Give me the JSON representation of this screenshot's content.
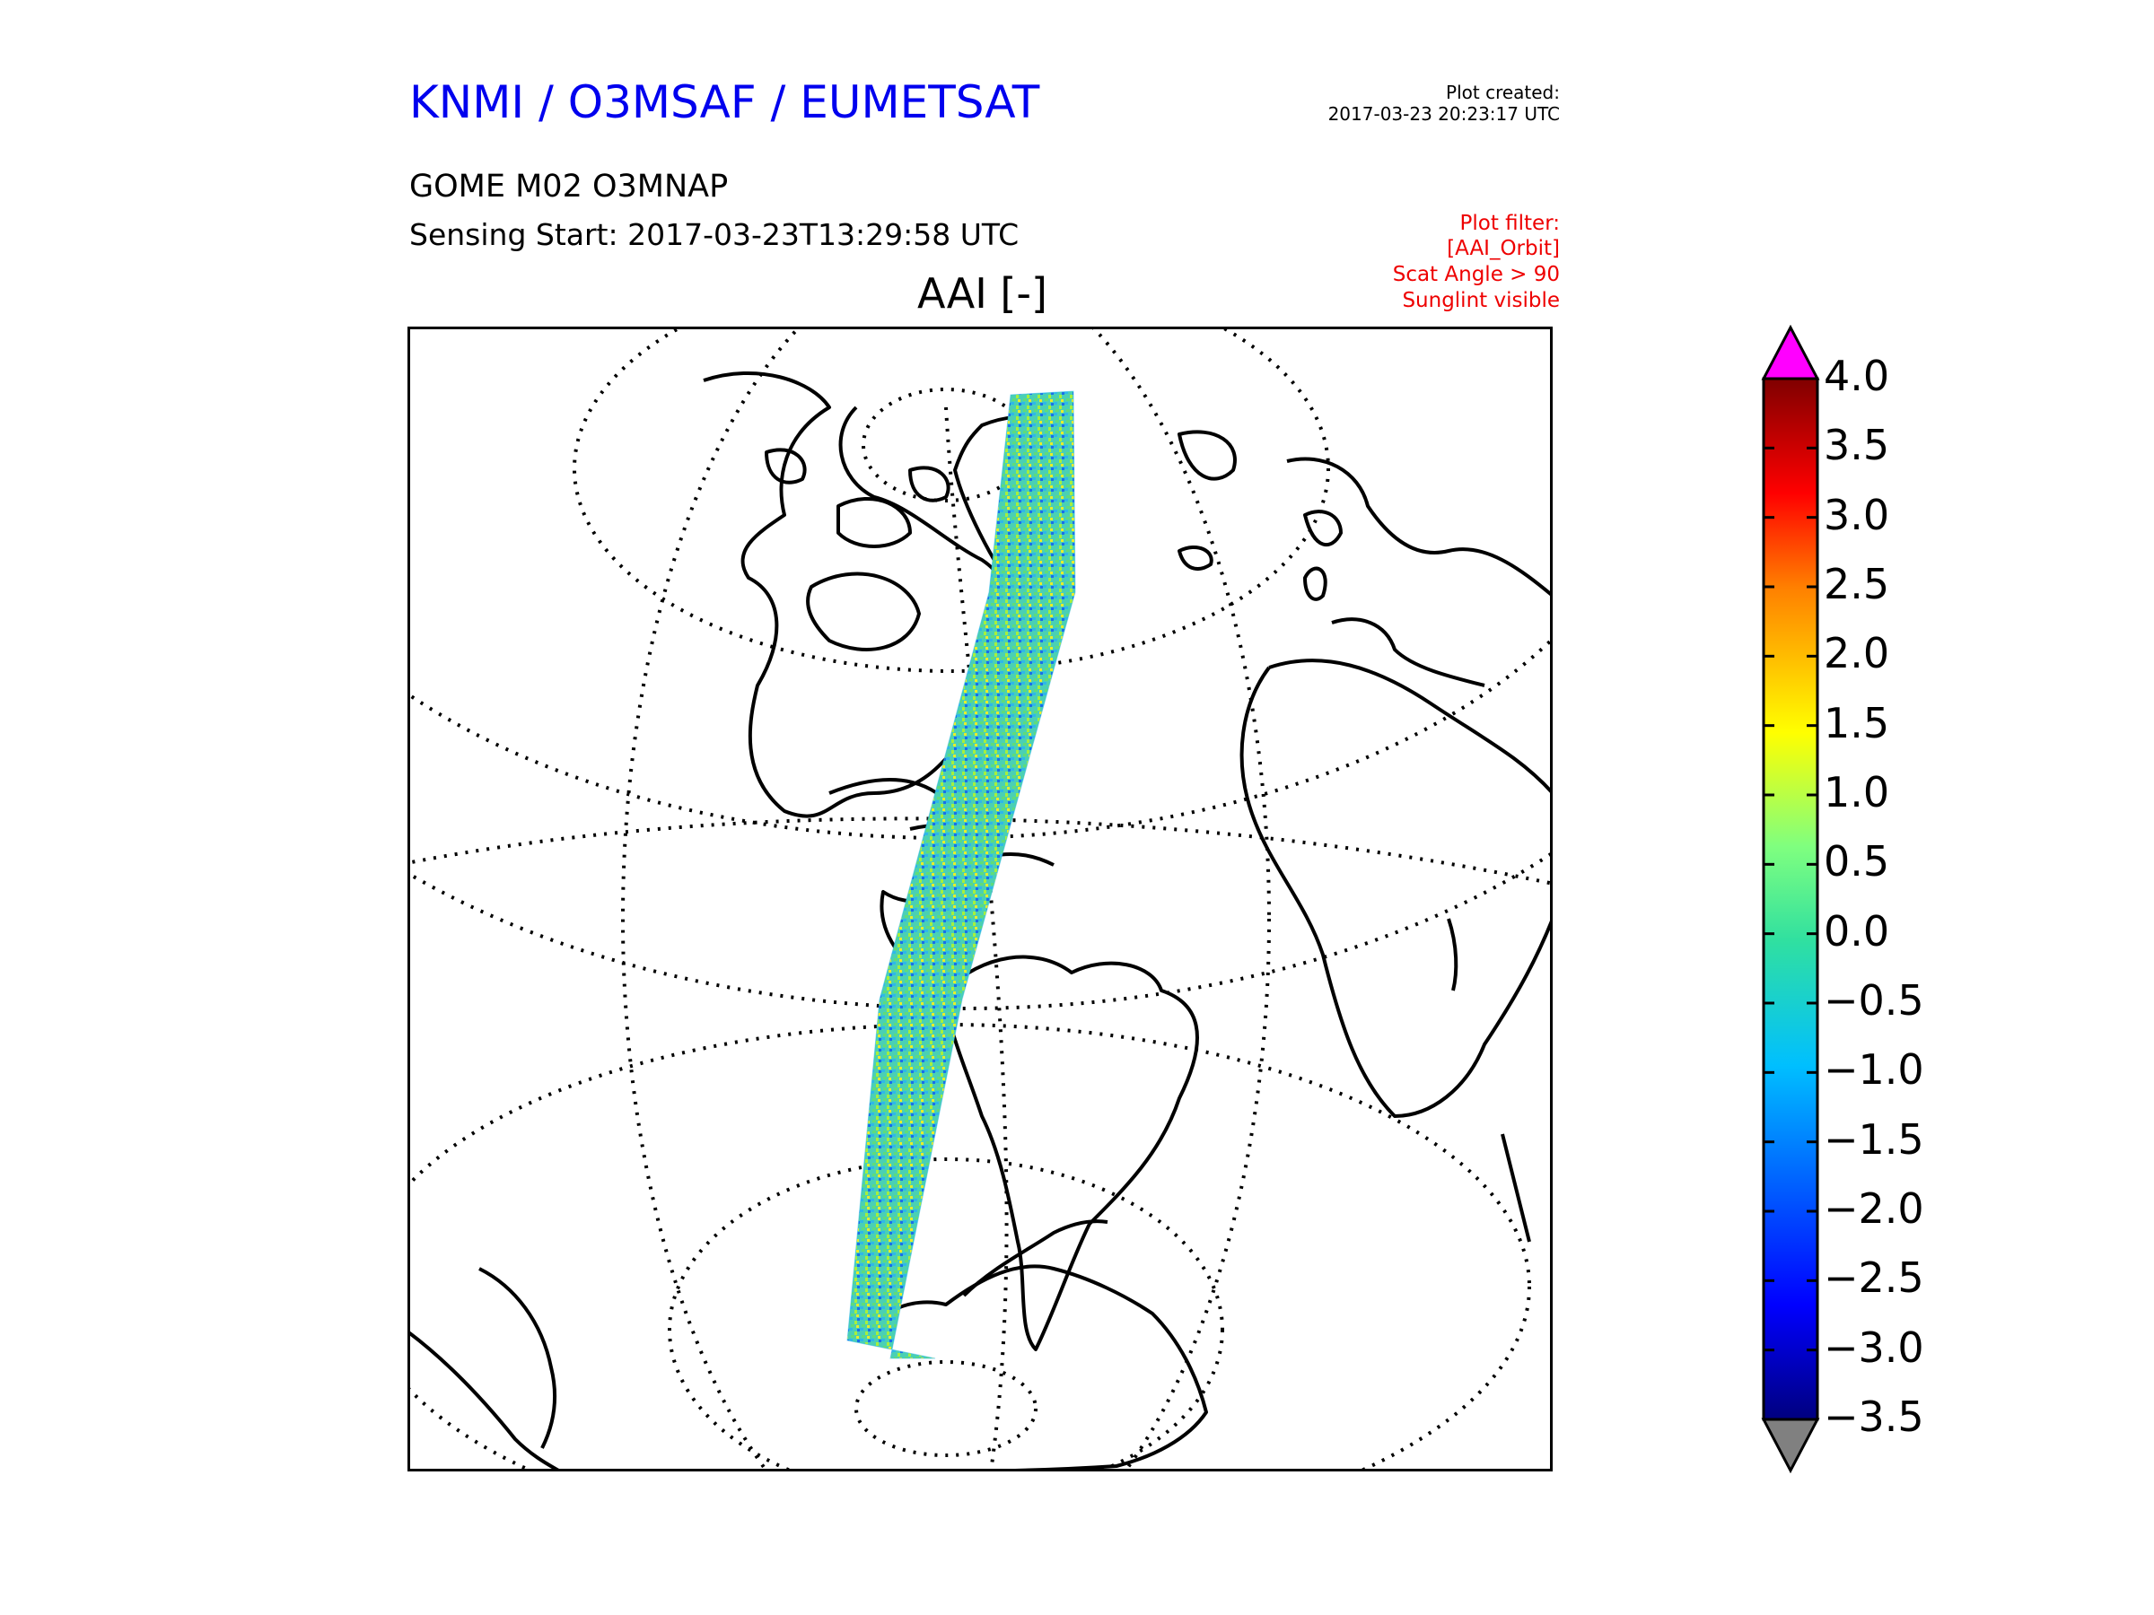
{
  "header": {
    "title": "KNMI / O3MSAF / EUMETSAT",
    "created_label": "Plot created:",
    "created_value": "2017-03-23 20:23:17 UTC",
    "product": "GOME M02 O3MNAP",
    "sensing_start": "Sensing Start: 2017-03-23T13:29:58 UTC"
  },
  "filter": {
    "lines": [
      "Plot filter:",
      "[AAI_Orbit]",
      "Scat Angle > 90",
      "Sunglint visible"
    ]
  },
  "map": {
    "title": "AAI [-]",
    "projection": "orthographic",
    "swath_colors": [
      "#2fb8e8",
      "#5fdc7a",
      "#a6f03c",
      "#e8ee2a",
      "#1a6fe8"
    ]
  },
  "colorbar": {
    "tick_labels": [
      "4.0",
      "3.5",
      "3.0",
      "2.5",
      "2.0",
      "1.5",
      "1.0",
      "0.5",
      "0.0",
      "−0.5",
      "−1.0",
      "−1.5",
      "−2.0",
      "−2.5",
      "−3.0",
      "−3.5"
    ],
    "min": -3.5,
    "max": 4.0,
    "over_color": "#ff00ff",
    "under_color": "#808080",
    "colormap": "jet"
  }
}
